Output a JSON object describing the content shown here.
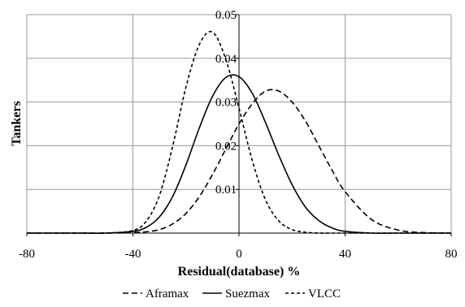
{
  "chart_data": {
    "type": "line",
    "title": "",
    "xlabel": "Residual(database) %",
    "ylabel": "Tankers",
    "xlim": [
      -80,
      80
    ],
    "ylim": [
      0,
      0.05
    ],
    "x_ticks": [
      -80,
      -40,
      0,
      40,
      80
    ],
    "y_ticks": [
      0.01,
      0.02,
      0.03,
      0.04,
      0.05
    ],
    "x_tick_labels": [
      "-80",
      "-40",
      "0",
      "40",
      "80"
    ],
    "y_tick_labels": [
      "0.01",
      "0.02",
      "0.03",
      "0.04",
      "0.05"
    ],
    "grid": true,
    "legend_position": "bottom",
    "x": [
      -80,
      -70,
      -60,
      -50,
      -40,
      -35,
      -30,
      -25,
      -20,
      -15,
      -10,
      -5,
      0,
      5,
      10,
      15,
      20,
      25,
      30,
      35,
      40,
      50,
      60,
      70,
      80
    ],
    "series": [
      {
        "name": "Aframax",
        "dash": "long-dash",
        "color": "#000000",
        "values": [
          0,
          0,
          0,
          0,
          0.0001,
          0.0003,
          0.0008,
          0.0021,
          0.0045,
          0.0083,
          0.0134,
          0.0192,
          0.025,
          0.0296,
          0.0325,
          0.0325,
          0.03,
          0.0257,
          0.0201,
          0.0145,
          0.0095,
          0.0031,
          0.0007,
          0.0001,
          0
        ]
      },
      {
        "name": "Suezmax",
        "dash": "solid",
        "color": "#000000",
        "values": [
          0,
          0,
          0,
          0,
          0.0004,
          0.0013,
          0.0037,
          0.0084,
          0.0156,
          0.024,
          0.0313,
          0.0356,
          0.0358,
          0.032,
          0.0253,
          0.0178,
          0.0111,
          0.006,
          0.0029,
          0.0012,
          0.0004,
          0,
          0,
          0,
          0
        ]
      },
      {
        "name": "VLCC",
        "dash": "short-dash",
        "color": "#000000",
        "values": [
          0,
          0,
          0,
          0,
          0.0006,
          0.0027,
          0.0086,
          0.0199,
          0.0334,
          0.0431,
          0.046,
          0.0398,
          0.0286,
          0.0166,
          0.0076,
          0.0028,
          0.0008,
          0.0002,
          0,
          0,
          0,
          0,
          0,
          0,
          0
        ]
      }
    ]
  }
}
